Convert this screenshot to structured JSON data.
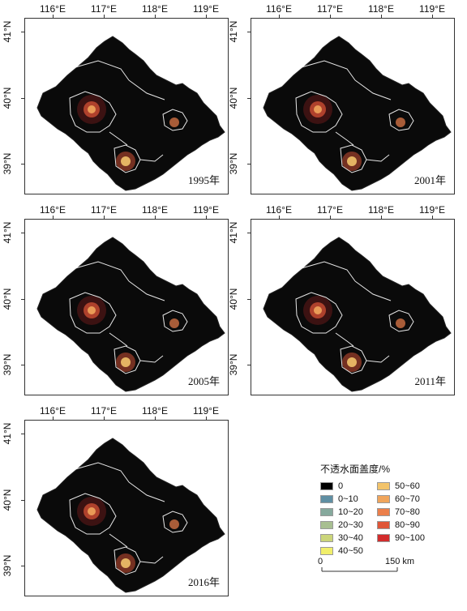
{
  "axes": {
    "lon_ticks": [
      "116°E",
      "117°E",
      "118°E",
      "119°E"
    ],
    "lat_ticks": [
      "41°N",
      "40°N",
      "39°N"
    ]
  },
  "panels": [
    {
      "year_label": "1995年"
    },
    {
      "year_label": "2001年"
    },
    {
      "year_label": "2005年"
    },
    {
      "year_label": "2011年"
    },
    {
      "year_label": "2016年"
    }
  ],
  "legend": {
    "title": "不透水面盖度/%",
    "items": [
      {
        "label": "0",
        "color": "#000000"
      },
      {
        "label": "0~10",
        "color": "#5f8fa3"
      },
      {
        "label": "10~20",
        "color": "#86a99d"
      },
      {
        "label": "20~30",
        "color": "#a8bf91"
      },
      {
        "label": "30~40",
        "color": "#cbd57a"
      },
      {
        "label": "40~50",
        "color": "#f1ef6b"
      },
      {
        "label": "50~60",
        "color": "#f2c36a"
      },
      {
        "label": "60~70",
        "color": "#f0a55c"
      },
      {
        "label": "70~80",
        "color": "#eb7f4b"
      },
      {
        "label": "80~90",
        "color": "#df5638"
      },
      {
        "label": "90~100",
        "color": "#d22c2c"
      }
    ]
  },
  "scale": {
    "start": "0",
    "end": "150 km"
  }
}
